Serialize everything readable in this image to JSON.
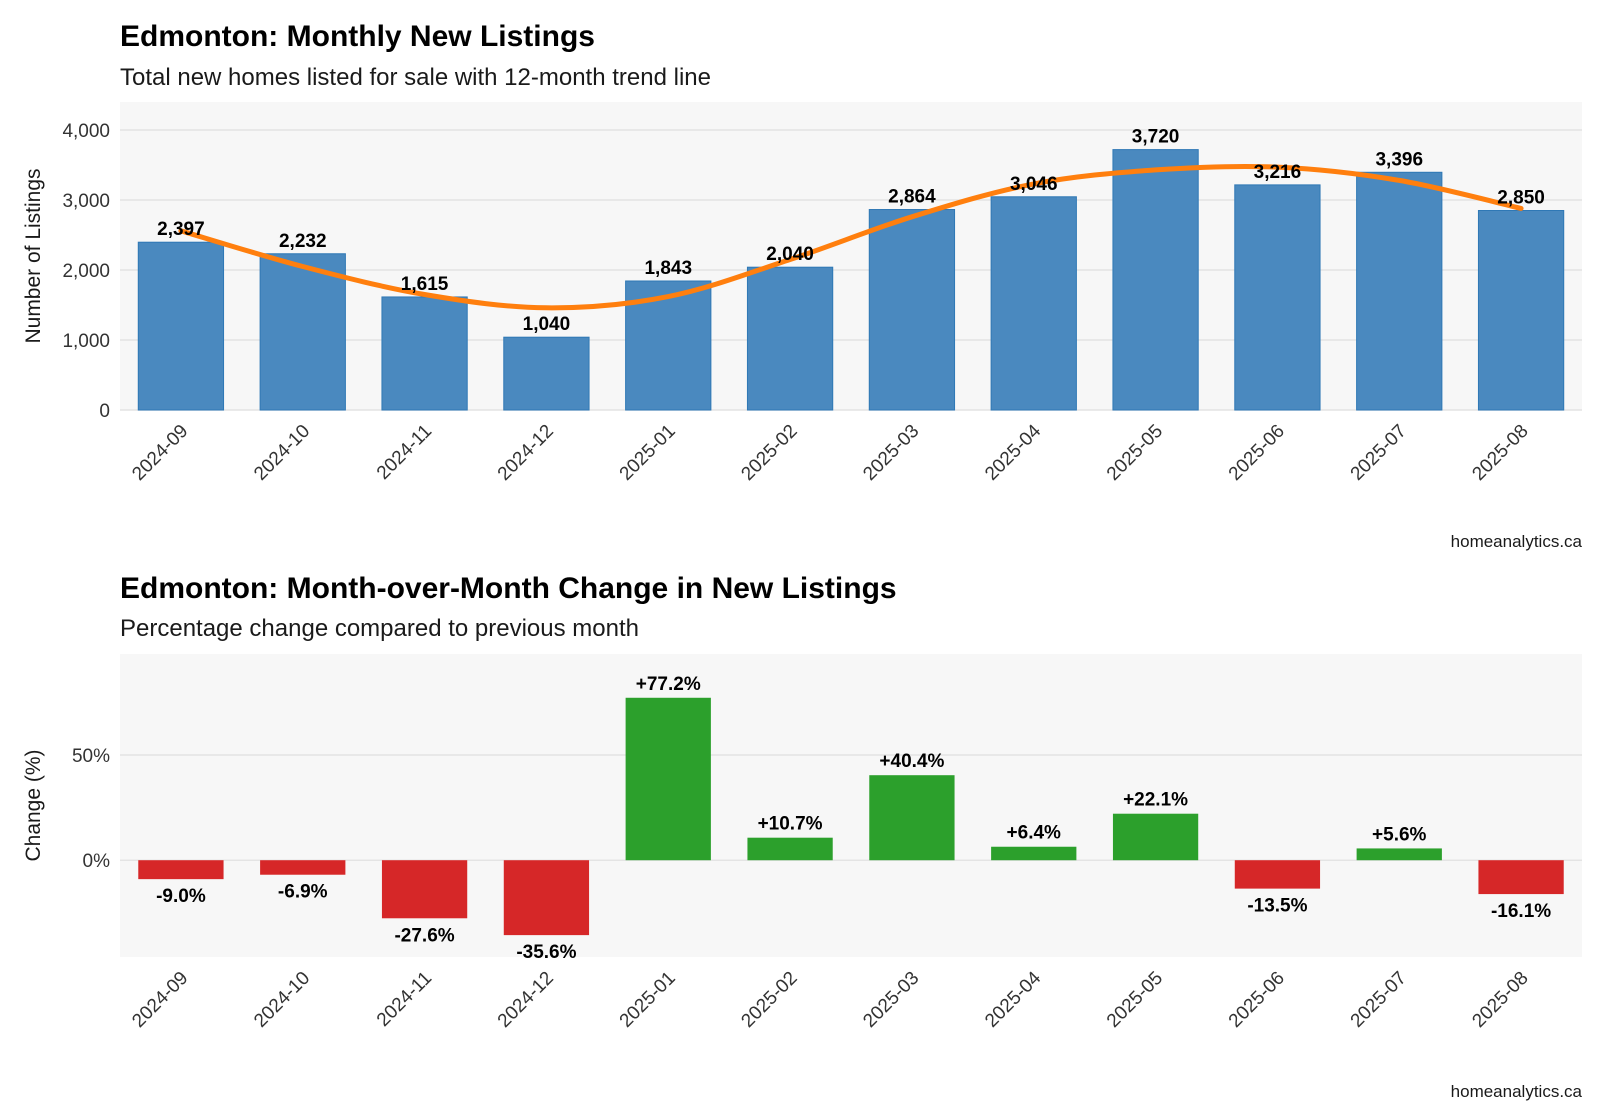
{
  "chart_data": [
    {
      "type": "bar",
      "title": "Edmonton: Monthly New Listings",
      "subtitle": "Total new homes listed for sale with 12-month trend line",
      "xlabel": "",
      "ylabel": "Number of Listings",
      "categories": [
        "2024-09",
        "2024-10",
        "2024-11",
        "2024-12",
        "2025-01",
        "2025-02",
        "2025-03",
        "2025-04",
        "2025-05",
        "2025-06",
        "2025-07",
        "2025-08"
      ],
      "values": [
        2397,
        2232,
        1615,
        1040,
        1843,
        2040,
        2864,
        3046,
        3720,
        3216,
        3396,
        2850
      ],
      "value_labels": [
        "2,397",
        "2,232",
        "1,615",
        "1,040",
        "1,843",
        "2,040",
        "2,864",
        "3,046",
        "3,720",
        "3,216",
        "3,396",
        "2,850"
      ],
      "trend_line": [
        2560,
        2050,
        1650,
        1460,
        1620,
        2150,
        2760,
        3230,
        3430,
        3470,
        3280,
        2880
      ],
      "ylim": [
        0,
        4400
      ],
      "yticks": [
        0,
        1000,
        2000,
        3000,
        4000
      ],
      "ytick_labels": [
        "0",
        "1,000",
        "2,000",
        "3,000",
        "4,000"
      ],
      "grid": true,
      "colors": {
        "bar": "#4a89bf",
        "bar_edge": "#2f78b5",
        "trend": "#ff7f0e",
        "panel": "#f7f7f7",
        "grid": "#e4e4e4"
      },
      "caption": "homeanalytics.ca"
    },
    {
      "type": "bar",
      "title": "Edmonton: Month-over-Month Change in New Listings",
      "subtitle": "Percentage change compared to previous month",
      "xlabel": "",
      "ylabel": "Change (%)",
      "categories": [
        "2024-09",
        "2024-10",
        "2024-11",
        "2024-12",
        "2025-01",
        "2025-02",
        "2025-03",
        "2025-04",
        "2025-05",
        "2025-06",
        "2025-07",
        "2025-08"
      ],
      "values": [
        -9.0,
        -6.9,
        -27.6,
        -35.6,
        77.2,
        10.7,
        40.4,
        6.4,
        22.1,
        -13.5,
        5.6,
        -16.1
      ],
      "value_labels": [
        "-9.0%",
        "-6.9%",
        "-27.6%",
        "-35.6%",
        "+77.2%",
        "+10.7%",
        "+40.4%",
        "+6.4%",
        "+22.1%",
        "-13.5%",
        "+5.6%",
        "-16.1%"
      ],
      "ylim": [
        -46,
        98
      ],
      "yticks": [
        0,
        50
      ],
      "ytick_labels": [
        "0%",
        "50%"
      ],
      "grid": true,
      "colors": {
        "positive": "#2ca02c",
        "negative": "#d62728",
        "panel": "#f7f7f7",
        "grid": "#e4e4e4"
      },
      "caption": "homeanalytics.ca"
    }
  ]
}
